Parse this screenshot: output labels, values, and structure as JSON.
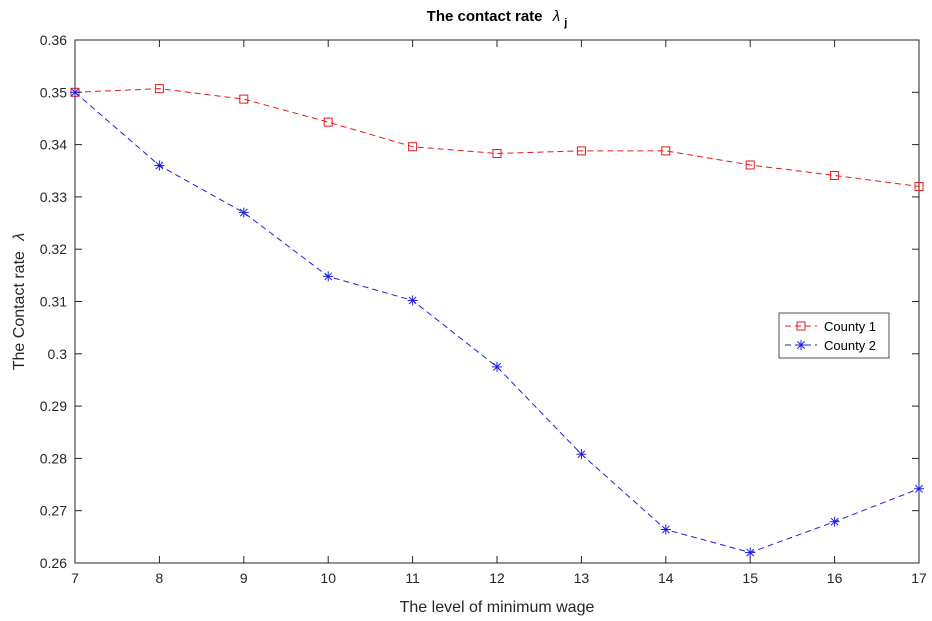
{
  "chart_data": {
    "type": "line",
    "title": "The contact rate",
    "title_symbol": "λ",
    "title_subscript": "j",
    "xlabel": "The level of minimum wage",
    "ylabel": "The Contact rate",
    "ylabel_symbol": "λ",
    "xlim": [
      7,
      17
    ],
    "ylim": [
      0.26,
      0.36
    ],
    "x_ticks": [
      "7",
      "8",
      "9",
      "10",
      "11",
      "12",
      "13",
      "14",
      "15",
      "16",
      "17"
    ],
    "y_ticks": [
      "0.26",
      "0.27",
      "0.28",
      "0.29",
      "0.3",
      "0.31",
      "0.32",
      "0.33",
      "0.34",
      "0.35",
      "0.36"
    ],
    "x_tick_values": [
      7,
      8,
      9,
      10,
      11,
      12,
      13,
      14,
      15,
      16,
      17
    ],
    "y_tick_values": [
      0.26,
      0.27,
      0.28,
      0.29,
      0.3,
      0.31,
      0.32,
      0.33,
      0.34,
      0.35,
      0.36
    ],
    "grid": false,
    "legend_position": "right",
    "x": [
      7,
      8,
      9,
      10,
      11,
      12,
      13,
      14,
      15,
      16,
      17
    ],
    "series": [
      {
        "name": "County 1",
        "color": "#e41a1c",
        "marker": "square",
        "line_style": "dashed",
        "values": [
          0.35,
          0.3507,
          0.3487,
          0.3443,
          0.3396,
          0.3383,
          0.3388,
          0.3388,
          0.3361,
          0.3341,
          0.332
        ]
      },
      {
        "name": "County 2",
        "color": "#1f1fe0",
        "marker": "asterisk",
        "line_style": "dashed",
        "values": [
          0.35,
          0.336,
          0.327,
          0.3148,
          0.3102,
          0.2975,
          0.2808,
          0.2664,
          0.262,
          0.2679,
          0.2742
        ]
      }
    ]
  }
}
